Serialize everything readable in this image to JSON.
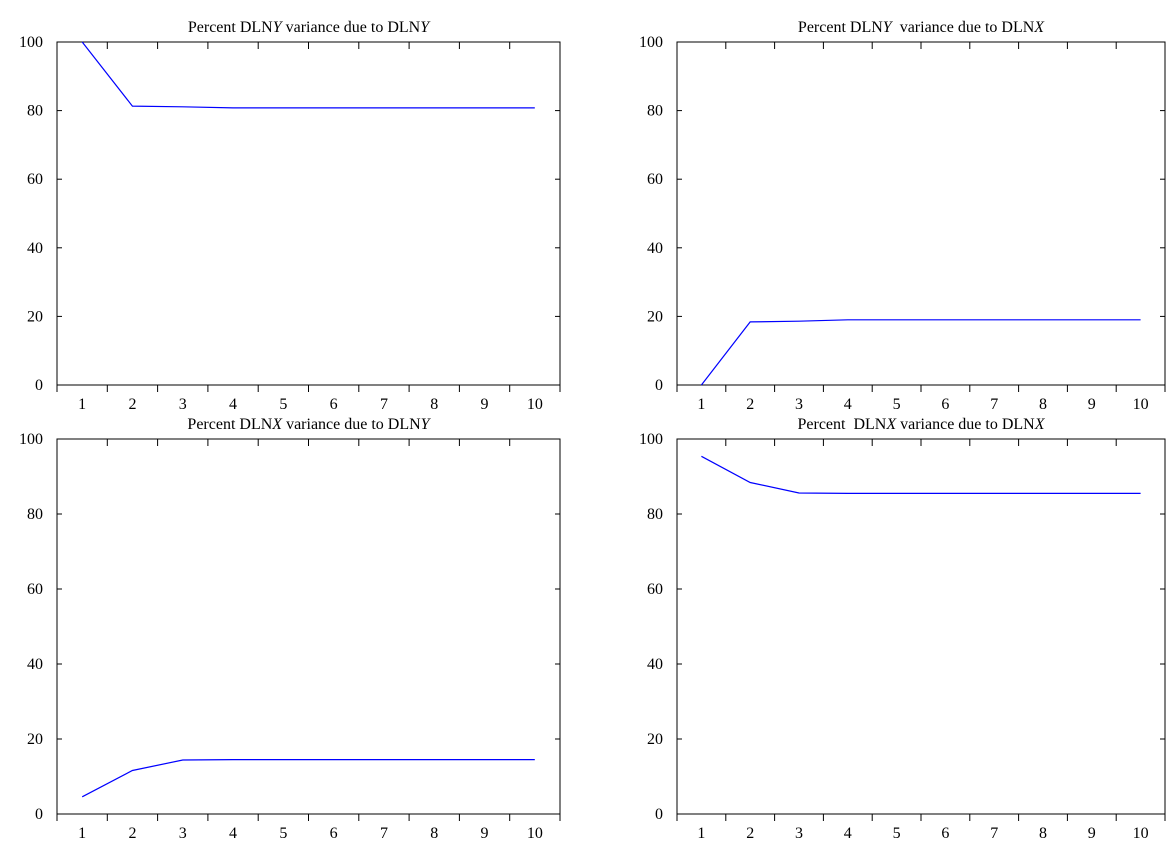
{
  "colors": {
    "line": "#0000ff",
    "axis": "#000000"
  },
  "chart_data": [
    {
      "type": "line",
      "title_parts": [
        {
          "t": "Percent DLN",
          "i": false
        },
        {
          "t": "Y",
          "i": true
        },
        {
          "t": " variance due to DLN",
          "i": false
        },
        {
          "t": "Y",
          "i": true
        }
      ],
      "x": [
        1,
        2,
        3,
        4,
        5,
        6,
        7,
        8,
        9,
        10
      ],
      "values": [
        100,
        81.3,
        81.1,
        80.8,
        80.8,
        80.8,
        80.8,
        80.8,
        80.8,
        80.8
      ],
      "ylim": [
        0,
        100
      ],
      "yticks": [
        0,
        20,
        40,
        60,
        80,
        100
      ],
      "xlim": [
        0.5,
        10.5
      ],
      "grid": false,
      "legend": false
    },
    {
      "type": "line",
      "title_parts": [
        {
          "t": "Percent DLN",
          "i": false
        },
        {
          "t": "Y",
          "i": true
        },
        {
          "t": "  variance due to DLN",
          "i": false
        },
        {
          "t": "X",
          "i": true
        }
      ],
      "x": [
        1,
        2,
        3,
        4,
        5,
        6,
        7,
        8,
        9,
        10
      ],
      "values": [
        0,
        18.4,
        18.6,
        19.0,
        19.0,
        19.0,
        19.0,
        19.0,
        19.0,
        19.0
      ],
      "ylim": [
        0,
        100
      ],
      "yticks": [
        0,
        20,
        40,
        60,
        80,
        100
      ],
      "xlim": [
        0.5,
        10.5
      ],
      "grid": false,
      "legend": false
    },
    {
      "type": "line",
      "title_parts": [
        {
          "t": "Percent DLN",
          "i": false
        },
        {
          "t": "X",
          "i": true
        },
        {
          "t": " variance due to DLN",
          "i": false
        },
        {
          "t": "Y",
          "i": true
        }
      ],
      "x": [
        1,
        2,
        3,
        4,
        5,
        6,
        7,
        8,
        9,
        10
      ],
      "values": [
        4.6,
        11.6,
        14.4,
        14.5,
        14.5,
        14.5,
        14.5,
        14.5,
        14.5,
        14.5
      ],
      "ylim": [
        0,
        100
      ],
      "yticks": [
        0,
        20,
        40,
        60,
        80,
        100
      ],
      "xlim": [
        0.5,
        10.5
      ],
      "grid": false,
      "legend": false
    },
    {
      "type": "line",
      "title_parts": [
        {
          "t": "Percent  DLN",
          "i": false
        },
        {
          "t": "X",
          "i": true
        },
        {
          "t": " variance due to DLN",
          "i": false
        },
        {
          "t": "X",
          "i": true
        }
      ],
      "x": [
        1,
        2,
        3,
        4,
        5,
        6,
        7,
        8,
        9,
        10
      ],
      "values": [
        95.4,
        88.4,
        85.6,
        85.5,
        85.5,
        85.5,
        85.5,
        85.5,
        85.5,
        85.5
      ],
      "ylim": [
        0,
        100
      ],
      "yticks": [
        0,
        20,
        40,
        60,
        80,
        100
      ],
      "xlim": [
        0.5,
        10.5
      ],
      "grid": false,
      "legend": false
    }
  ]
}
